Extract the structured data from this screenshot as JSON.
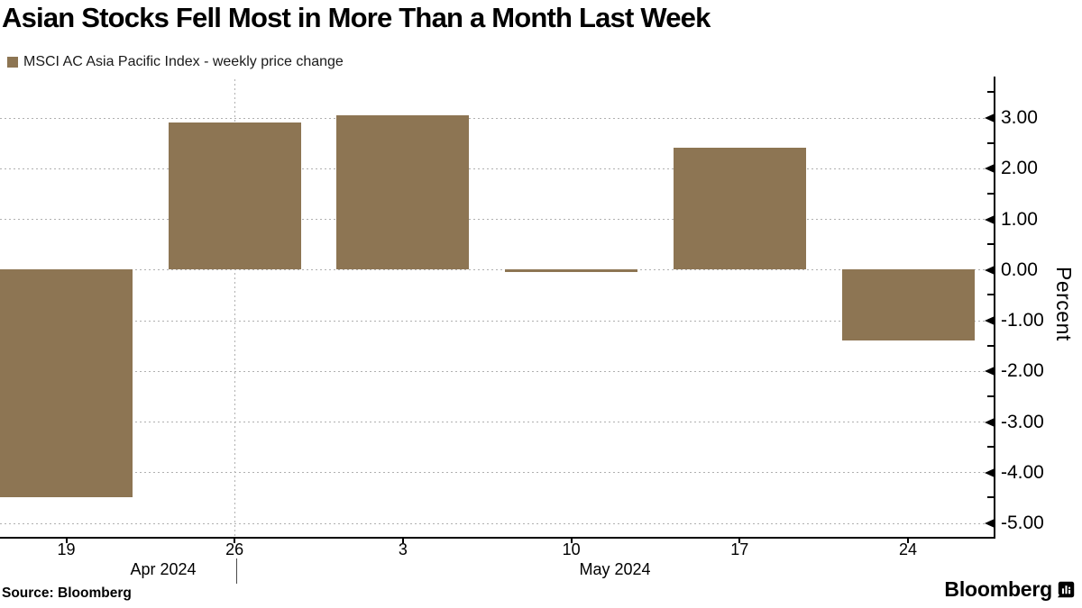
{
  "title": "Asian Stocks Fell Most in More Than a Month Last Week",
  "legend": {
    "label": "MSCI AC Asia Pacific Index - weekly price change"
  },
  "source": {
    "text": "Source: Bloomberg"
  },
  "branding": {
    "logo_text": "Bloomberg",
    "logo_icon": "bloomberg-bug-icon"
  },
  "colors": {
    "bar": "#8d7553",
    "grid": "#b0b0b0",
    "axis": "#000000",
    "divider": "#4a4a4a"
  },
  "chart_data": {
    "type": "bar",
    "title": "Asian Stocks Fell Most in More Than a Month Last Week",
    "series_name": "MSCI AC Asia Pacific Index - weekly price change",
    "categories": [
      "Apr 19",
      "Apr 26",
      "May 3",
      "May 10",
      "May 17",
      "May 24"
    ],
    "x_tick_labels": [
      "19",
      "26",
      "3",
      "10",
      "17",
      "24"
    ],
    "month_labels": [
      "Apr 2024",
      "May 2024"
    ],
    "values": [
      -4.5,
      2.9,
      3.05,
      -0.03,
      2.4,
      -1.4
    ],
    "bar_color": "#8d7553",
    "ylabel": "Percent",
    "ylim": [
      -5.29,
      3.76
    ],
    "y_major_ticks": [
      3,
      2,
      1,
      0,
      -1,
      -2,
      -3,
      -4,
      -5
    ],
    "y_tick_labels": [
      "3.00",
      "2.00",
      "1.00",
      "0.00",
      "-1.00",
      "-2.00",
      "-3.00",
      "-4.00",
      "-5.00"
    ],
    "y_minor_ticks": [
      3.5,
      2.5,
      1.5,
      0.5,
      -0.5,
      -1.5,
      -2.5,
      -3.5,
      -4.5
    ],
    "grid": "horizontal-dashed; single vertical dashed line at Apr 26",
    "legend_position": "top-left",
    "y_axis_side": "right"
  }
}
